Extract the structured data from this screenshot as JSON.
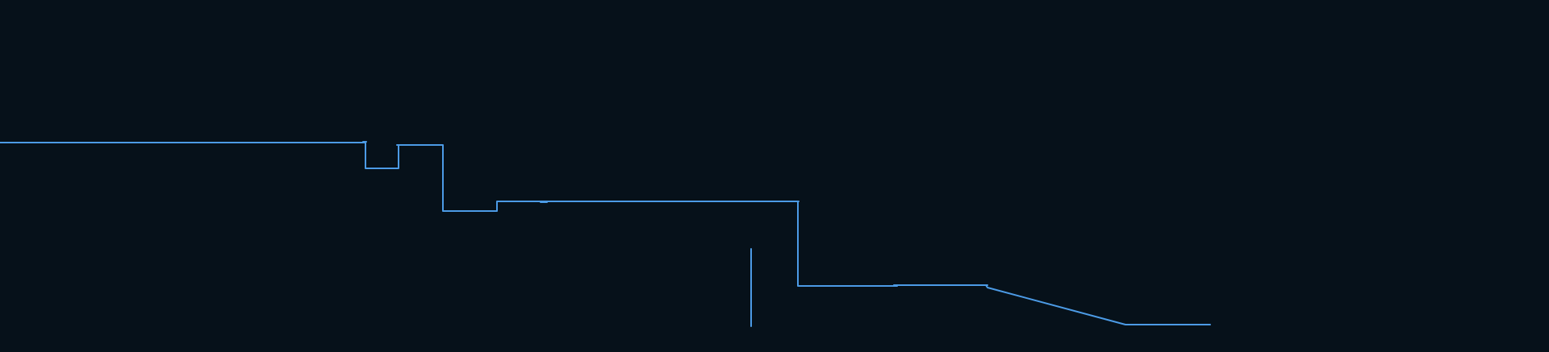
{
  "colors": {
    "background": "#06111a",
    "line": "#4c9be6"
  }
}
